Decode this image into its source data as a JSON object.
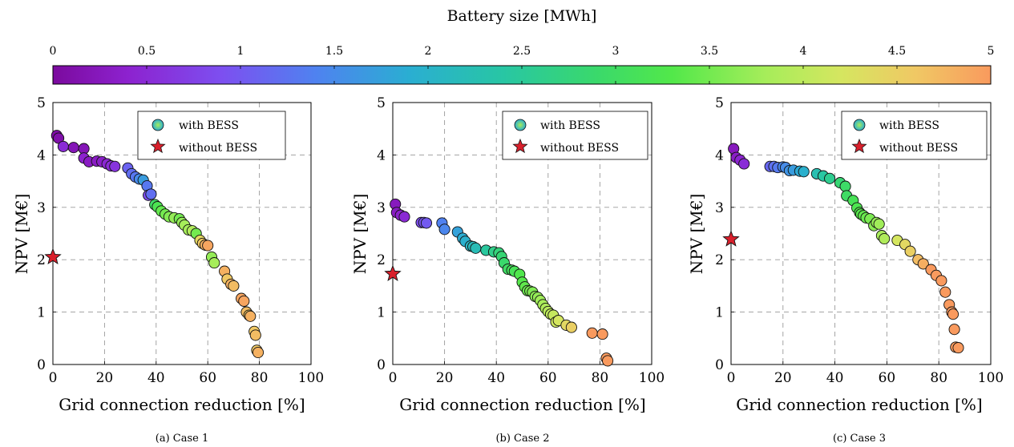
{
  "colorbar": {
    "title": "Battery size [MWh]",
    "ticks": [
      "0",
      "0.5",
      "1",
      "1.5",
      "2",
      "2.5",
      "3",
      "3.5",
      "4",
      "4.5",
      "5"
    ],
    "min": 0,
    "max": 5
  },
  "chart_data": [
    {
      "type": "scatter",
      "caption": "(a) Case 1",
      "xlabel": "Grid connection reduction [%]",
      "ylabel": "NPV [M€]",
      "xlim": [
        0,
        100
      ],
      "ylim": [
        0,
        5
      ],
      "xticks": [
        "0",
        "20",
        "40",
        "60",
        "80",
        "100"
      ],
      "yticks": [
        "0",
        "1",
        "2",
        "3",
        "4",
        "5"
      ],
      "grid": true,
      "legend": {
        "position": "top-right",
        "entries": [
          "with BESS",
          "without BESS"
        ]
      },
      "series": [
        {
          "name": "with BESS",
          "x": [
            1.5,
            2.2,
            4.0,
            8.0,
            12.0,
            12.0,
            14.0,
            17.0,
            19.0,
            21.0,
            22.5,
            24.0,
            29.0,
            30.5,
            32.0,
            33.5,
            35.0,
            36.5,
            37.0,
            38.0,
            39.5,
            40.5,
            42.0,
            43.5,
            45.0,
            47.0,
            49.0,
            50.0,
            51.0,
            52.5,
            54.0,
            55.5,
            57.0,
            58.0,
            59.0,
            60.0,
            61.5,
            62.5,
            66.5,
            67.5,
            69.0,
            70.0,
            73.0,
            74.0,
            75.0,
            76.0,
            76.5,
            78.0,
            78.5,
            79.0,
            79.5
          ],
          "y": [
            4.37,
            4.32,
            4.16,
            4.14,
            4.12,
            3.94,
            3.87,
            3.88,
            3.87,
            3.83,
            3.79,
            3.78,
            3.75,
            3.64,
            3.58,
            3.54,
            3.52,
            3.41,
            3.23,
            3.25,
            3.05,
            3.01,
            2.93,
            2.87,
            2.82,
            2.8,
            2.78,
            2.71,
            2.66,
            2.57,
            2.55,
            2.5,
            2.37,
            2.31,
            2.28,
            2.27,
            2.05,
            1.94,
            1.78,
            1.63,
            1.53,
            1.5,
            1.26,
            1.21,
            1.0,
            0.94,
            0.92,
            0.63,
            0.56,
            0.27,
            0.23
          ],
          "battery_size": [
            0.05,
            0.1,
            0.5,
            0.2,
            0.2,
            0.4,
            0.3,
            0.3,
            0.35,
            0.45,
            0.5,
            0.6,
            1.1,
            1.2,
            1.3,
            1.5,
            1.7,
            1.3,
            0.9,
            1.2,
            3.0,
            3.2,
            3.4,
            3.5,
            3.6,
            3.7,
            3.5,
            3.7,
            3.8,
            3.8,
            3.9,
            3.5,
            4.4,
            4.6,
            4.8,
            4.9,
            3.7,
            3.8,
            4.8,
            4.6,
            4.8,
            4.7,
            4.9,
            4.9,
            4.7,
            4.6,
            4.8,
            4.6,
            4.7,
            4.6,
            4.8
          ]
        },
        {
          "name": "without BESS",
          "x": [
            0
          ],
          "y": [
            2.05
          ]
        }
      ]
    },
    {
      "type": "scatter",
      "caption": "(b) Case 2",
      "xlabel": "Grid connection reduction [%]",
      "ylabel": "NPV [M€]",
      "xlim": [
        0,
        100
      ],
      "ylim": [
        0,
        5
      ],
      "xticks": [
        "0",
        "20",
        "40",
        "60",
        "80",
        "100"
      ],
      "yticks": [
        "0",
        "1",
        "2",
        "3",
        "4",
        "5"
      ],
      "grid": true,
      "legend": {
        "position": "top-right",
        "entries": [
          "with BESS",
          "without BESS"
        ]
      },
      "series": [
        {
          "name": "with BESS",
          "x": [
            1.0,
            1.5,
            3.0,
            4.5,
            11.0,
            12.0,
            13.0,
            19.0,
            20.0,
            25.0,
            27.0,
            28.0,
            30.0,
            31.0,
            32.0,
            36.0,
            39.0,
            41.0,
            42.0,
            43.0,
            44.5,
            46.0,
            47.0,
            49.0,
            50.0,
            51.0,
            52.0,
            53.0,
            54.0,
            55.0,
            56.0,
            57.0,
            58.0,
            59.0,
            60.0,
            61.0,
            62.0,
            63.0,
            64.0,
            67.0,
            69.0,
            77.0,
            81.0,
            82.5,
            83.0
          ],
          "y": [
            3.06,
            2.9,
            2.85,
            2.82,
            2.71,
            2.71,
            2.7,
            2.7,
            2.58,
            2.53,
            2.41,
            2.35,
            2.26,
            2.25,
            2.22,
            2.18,
            2.15,
            2.13,
            2.06,
            1.94,
            1.82,
            1.8,
            1.78,
            1.72,
            1.57,
            1.48,
            1.41,
            1.4,
            1.38,
            1.3,
            1.28,
            1.22,
            1.14,
            1.07,
            1.01,
            0.96,
            0.94,
            0.81,
            0.84,
            0.75,
            0.71,
            0.6,
            0.58,
            0.12,
            0.07
          ]
        },
        {
          "name": "without BESS",
          "x": [
            0
          ],
          "y": [
            1.73
          ]
        }
      ]
    },
    {
      "type": "scatter",
      "caption": "(c) Case 3",
      "xlabel": "Grid connection reduction [%]",
      "ylabel": "NPV [M€]",
      "xlim": [
        0,
        100
      ],
      "ylim": [
        0,
        5
      ],
      "xticks": [
        "0",
        "20",
        "40",
        "60",
        "80",
        "100"
      ],
      "yticks": [
        "0",
        "1",
        "2",
        "3",
        "4",
        "5"
      ],
      "grid": true,
      "legend": {
        "position": "top-right",
        "entries": [
          "with BESS",
          "without BESS"
        ]
      },
      "series": [
        {
          "name": "with BESS",
          "x": [
            1.0,
            2.0,
            3.5,
            5.0,
            15.0,
            16.5,
            18.0,
            20.0,
            21.0,
            22.5,
            24.0,
            26.5,
            28.0,
            33.0,
            35.5,
            38.0,
            42.0,
            44.0,
            44.5,
            47.0,
            48.5,
            49.5,
            50.0,
            51.0,
            52.0,
            53.5,
            55.0,
            56.0,
            57.0,
            58.0,
            59.0,
            64.0,
            67.0,
            69.0,
            72.0,
            74.0,
            77.0,
            79.0,
            81.0,
            82.5,
            84.0,
            85.0,
            85.5,
            86.0,
            86.5,
            87.5
          ],
          "y": [
            4.12,
            3.95,
            3.9,
            3.83,
            3.78,
            3.78,
            3.76,
            3.77,
            3.76,
            3.7,
            3.71,
            3.69,
            3.68,
            3.64,
            3.6,
            3.55,
            3.47,
            3.4,
            3.22,
            3.13,
            2.99,
            2.9,
            2.87,
            2.84,
            2.8,
            2.78,
            2.65,
            2.71,
            2.68,
            2.46,
            2.4,
            2.37,
            2.29,
            2.16,
            2.0,
            1.92,
            1.81,
            1.7,
            1.6,
            1.38,
            1.14,
            1.0,
            0.96,
            0.67,
            0.33,
            0.32
          ]
        },
        {
          "name": "without BESS",
          "x": [
            0
          ],
          "y": [
            2.39
          ]
        }
      ]
    }
  ]
}
